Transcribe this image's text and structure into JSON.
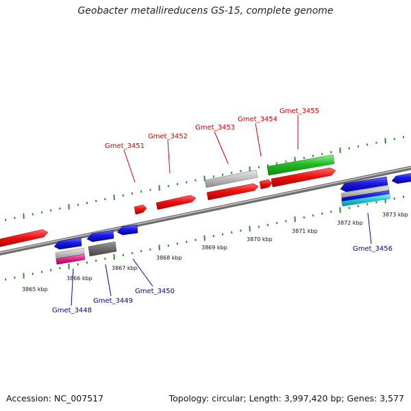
{
  "title": "Geobacter metallireducens GS-15, complete genome",
  "footer": {
    "accession": "Accession: NC_007517",
    "topology": "Topology: circular; Length: 3,997,420 bp; Genes: 3,577"
  },
  "colors": {
    "forward_label": "#cc0000",
    "reverse_label": "#000099",
    "red": "#f01010",
    "blue": "#1a1ae6",
    "green": "#22bb22",
    "gray": "#bdbdbd",
    "magenta": "#e0208a",
    "cyan": "#20c8d8",
    "tick_green": "#2f8a2f",
    "backbone": "#808080"
  },
  "scale_labels": [
    "3865 kbp",
    "3866 kbp",
    "3867 kbp",
    "3868 kbp",
    "3869 kbp",
    "3870 kbp",
    "3871 kbp",
    "3872 kbp",
    "3873 kbp"
  ],
  "forward_genes": [
    "Gmet_3451",
    "Gmet_3452",
    "Gmet_3453",
    "Gmet_3454",
    "Gmet_3455"
  ],
  "reverse_genes": [
    "Gmet_3448",
    "Gmet_3449",
    "Gmet_3450",
    "Gmet_3456"
  ]
}
